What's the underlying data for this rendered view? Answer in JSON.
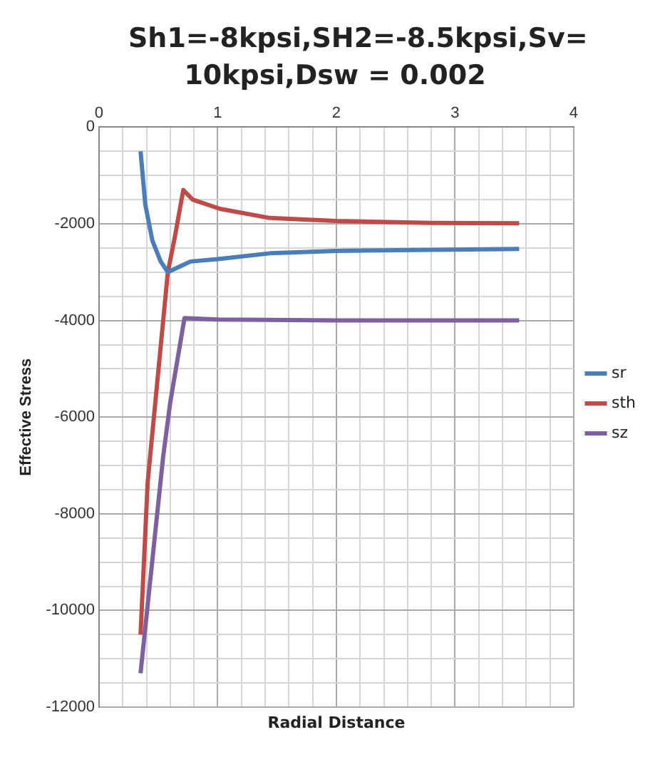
{
  "chart_data": {
    "type": "line",
    "title": "Sh1=-8kpsi,SH2=-8.5kpsi,Sv= 10kpsi,Dsw = 0.002",
    "xlabel": "Radial Distance",
    "ylabel": "Effective Stress",
    "xlim": [
      0,
      4
    ],
    "xticks": [
      0,
      {
        "value": 0.2,
        "label": null
      },
      {
        "value": 0.4,
        "label": null
      },
      {
        "value": 0.6,
        "label": null
      },
      {
        "value": 0.8,
        "label": null
      },
      1,
      {
        "value": 1.2,
        "label": null
      },
      {
        "value": 1.4,
        "label": null
      },
      {
        "value": 1.6,
        "label": null
      },
      {
        "value": 1.8,
        "label": null
      },
      2,
      {
        "value": 2.2,
        "label": null
      },
      {
        "value": 2.4,
        "label": null
      },
      {
        "value": 2.6,
        "label": null
      },
      {
        "value": 2.8,
        "label": null
      },
      3,
      {
        "value": 3.2,
        "label": null
      },
      {
        "value": 3.4,
        "label": null
      },
      {
        "value": 3.6,
        "label": null
      },
      {
        "value": 3.8,
        "label": null
      },
      4
    ],
    "ylim": [
      -12000,
      0
    ],
    "yticks": [
      -12000,
      {
        "value": -11500,
        "label": null
      },
      {
        "value": -11000,
        "label": null
      },
      {
        "value": -10500,
        "label": null
      },
      -10000,
      {
        "value": -9500,
        "label": null
      },
      {
        "value": -9000,
        "label": null
      },
      {
        "value": -8500,
        "label": null
      },
      -8000,
      {
        "value": -7500,
        "label": null
      },
      {
        "value": -7000,
        "label": null
      },
      {
        "value": -6500,
        "label": null
      },
      -6000,
      {
        "value": -5500,
        "label": null
      },
      {
        "value": -5000,
        "label": null
      },
      {
        "value": -4500,
        "label": null
      },
      -4000,
      {
        "value": -3500,
        "label": null
      },
      {
        "value": -3000,
        "label": null
      },
      {
        "value": -2500,
        "label": null
      },
      -2000,
      {
        "value": -1500,
        "label": null
      },
      {
        "value": -1000,
        "label": null
      },
      {
        "value": -500,
        "label": null
      },
      0
    ],
    "grid": true,
    "legend": "right",
    "line_style": "solid",
    "series": [
      {
        "name": "sr",
        "color": "#4a7ebb",
        "x": [
          0.35,
          0.39,
          0.45,
          0.52,
          0.58,
          0.77,
          1.0,
          1.44,
          2.0,
          2.8,
          3.54
        ],
        "values": [
          -500,
          -1600,
          -2350,
          -2780,
          -3000,
          -2780,
          -2730,
          -2610,
          -2560,
          -2540,
          -2520
        ]
      },
      {
        "name": "sth",
        "color": "#be4b48",
        "x": [
          0.35,
          0.41,
          0.43,
          0.58,
          0.64,
          0.71,
          0.79,
          1.02,
          1.44,
          2.0,
          2.8,
          3.54
        ],
        "values": [
          -10500,
          -7350,
          -6830,
          -3000,
          -2260,
          -1300,
          -1500,
          -1690,
          -1880,
          -1940,
          -1980,
          -1990
        ]
      },
      {
        "name": "sz",
        "color": "#7d60a0",
        "x": [
          0.35,
          0.54,
          0.6,
          0.72,
          1.0,
          2.0,
          3.54
        ],
        "values": [
          -11300,
          -6830,
          -5700,
          -3950,
          -3980,
          -4000,
          -4000
        ]
      }
    ]
  }
}
